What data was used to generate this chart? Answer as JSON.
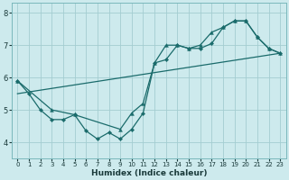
{
  "xlabel": "Humidex (Indice chaleur)",
  "xlim": [
    -0.5,
    23.5
  ],
  "ylim": [
    3.5,
    8.3
  ],
  "yticks": [
    4,
    5,
    6,
    7,
    8
  ],
  "xticks": [
    0,
    1,
    2,
    3,
    4,
    5,
    6,
    7,
    8,
    9,
    10,
    11,
    12,
    13,
    14,
    15,
    16,
    17,
    18,
    19,
    20,
    21,
    22,
    23
  ],
  "bg_color": "#cdeaed",
  "grid_color": "#a4cdd1",
  "line_color": "#1a6b6b",
  "line1_x": [
    0,
    1,
    2,
    3,
    4,
    5,
    6,
    7,
    8,
    9,
    10,
    11,
    12,
    13,
    14,
    15,
    16,
    17,
    18,
    19,
    20,
    21,
    22,
    23
  ],
  "line1_y": [
    5.9,
    5.5,
    5.0,
    4.7,
    4.7,
    4.85,
    4.35,
    4.1,
    4.3,
    4.1,
    4.4,
    4.9,
    6.45,
    6.55,
    7.0,
    6.9,
    6.9,
    7.05,
    7.55,
    7.75,
    7.75,
    7.25,
    6.9,
    6.75
  ],
  "line2_x": [
    0,
    3,
    5,
    9,
    10,
    11,
    12,
    13,
    14,
    15,
    16,
    17,
    18,
    19,
    20,
    21,
    22,
    23
  ],
  "line2_y": [
    5.9,
    5.0,
    4.85,
    4.4,
    4.9,
    5.2,
    6.45,
    7.0,
    7.0,
    6.9,
    7.0,
    7.4,
    7.55,
    7.75,
    7.75,
    7.25,
    6.9,
    6.75
  ],
  "line3_x": [
    0,
    23
  ],
  "line3_y": [
    5.5,
    6.75
  ]
}
